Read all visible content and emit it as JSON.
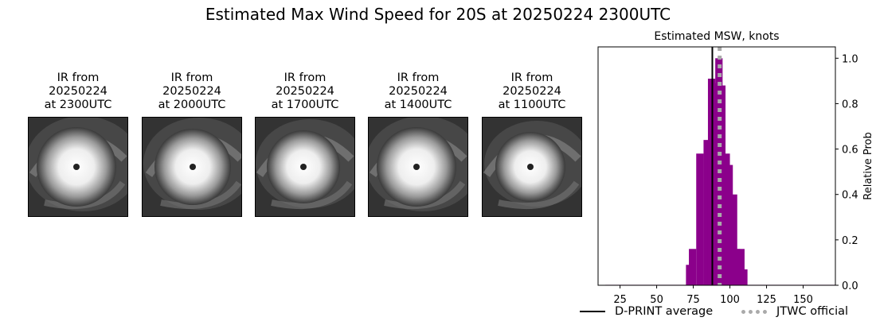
{
  "figure": {
    "title": "Estimated Max Wind Speed for 20S at 20250224 2300UTC"
  },
  "ir_images": [
    {
      "caption_l1": "IR from",
      "caption_l2": "20250224",
      "caption_l3": "at 2300UTC",
      "icon": "satellite-ir-image"
    },
    {
      "caption_l1": "IR from",
      "caption_l2": "20250224",
      "caption_l3": "at 2000UTC",
      "icon": "satellite-ir-image"
    },
    {
      "caption_l1": "IR from",
      "caption_l2": "20250224",
      "caption_l3": "at 1700UTC",
      "icon": "satellite-ir-image"
    },
    {
      "caption_l1": "IR from",
      "caption_l2": "20250224",
      "caption_l3": "at 1400UTC",
      "icon": "satellite-ir-image"
    },
    {
      "caption_l1": "IR from",
      "caption_l2": "20250224",
      "caption_l3": "at 1100UTC",
      "icon": "satellite-ir-image"
    }
  ],
  "chart_data": {
    "type": "bar",
    "title": "Estimated MSW, knots",
    "xlabel": "",
    "ylabel": "Relative Prob",
    "xlim": [
      10,
      172
    ],
    "ylim": [
      0,
      1.05
    ],
    "xticks": [
      25,
      50,
      75,
      100,
      125,
      150
    ],
    "yticks": [
      "0.0",
      "0.2",
      "0.4",
      "0.6",
      "0.8",
      "1.0"
    ],
    "bin_width": 5,
    "bins": [
      {
        "x": 15,
        "value": 0.002
      },
      {
        "x": 20,
        "value": 0.002
      },
      {
        "x": 25,
        "value": 0.002
      },
      {
        "x": 30,
        "value": 0.002
      },
      {
        "x": 35,
        "value": 0.002
      },
      {
        "x": 40,
        "value": 0.002
      },
      {
        "x": 45,
        "value": 0.002
      },
      {
        "x": 50,
        "value": 0.002
      },
      {
        "x": 55,
        "value": 0.002
      },
      {
        "x": 60,
        "value": 0.002
      },
      {
        "x": 65,
        "value": 0.002
      },
      {
        "x": 70,
        "value": 0.09
      },
      {
        "x": 72,
        "value": 0.16
      },
      {
        "x": 77,
        "value": 0.58
      },
      {
        "x": 82,
        "value": 0.64
      },
      {
        "x": 85,
        "value": 0.91
      },
      {
        "x": 87,
        "value": 0.89
      },
      {
        "x": 90,
        "value": 1.0
      },
      {
        "x": 92,
        "value": 0.88
      },
      {
        "x": 95,
        "value": 0.58
      },
      {
        "x": 97,
        "value": 0.53
      },
      {
        "x": 100,
        "value": 0.4
      },
      {
        "x": 102,
        "value": 0.16
      },
      {
        "x": 105,
        "value": 0.16
      },
      {
        "x": 107,
        "value": 0.07
      },
      {
        "x": 112,
        "value": 0.002
      },
      {
        "x": 117,
        "value": 0.002
      },
      {
        "x": 122,
        "value": 0.002
      },
      {
        "x": 127,
        "value": 0.002
      },
      {
        "x": 132,
        "value": 0.002
      },
      {
        "x": 137,
        "value": 0.002
      },
      {
        "x": 142,
        "value": 0.002
      },
      {
        "x": 147,
        "value": 0.002
      },
      {
        "x": 152,
        "value": 0.002
      },
      {
        "x": 157,
        "value": 0.002
      },
      {
        "x": 162,
        "value": 0.002
      },
      {
        "x": 167,
        "value": 0.002
      }
    ],
    "bar_color": "#8b008b",
    "vlines": [
      {
        "name": "D-PRINT average",
        "x": 88,
        "color": "#000000",
        "style": "solid"
      },
      {
        "name": "JTWC official",
        "x": 93,
        "color": "#aaaaaa",
        "style": "dotted"
      }
    ],
    "legend_placement": "bottom",
    "grid": false,
    "y_axis_side": "right"
  }
}
